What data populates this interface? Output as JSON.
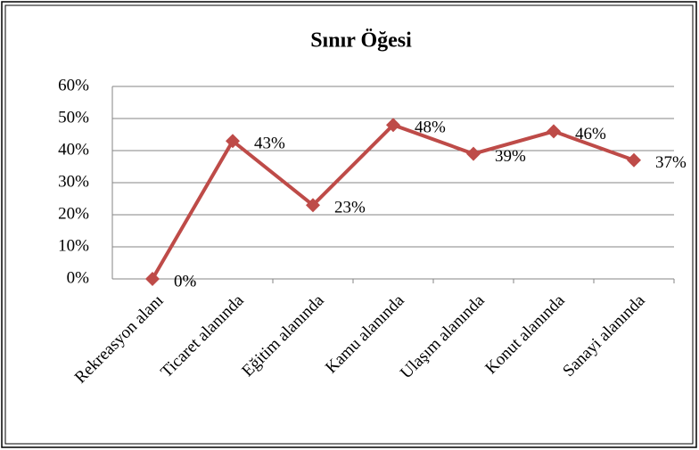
{
  "chart_data": {
    "type": "line",
    "title": "Sınır Öğesi",
    "categories": [
      "Rekreasyon alanı",
      "Ticaret alanında",
      "Eğitim alanında",
      "Kamu alanında",
      "Ulaşım alanında",
      "Konut alanında",
      "Sanayi alanında"
    ],
    "values": [
      0,
      43,
      23,
      48,
      39,
      46,
      37
    ],
    "value_labels": [
      "0%",
      "43%",
      "23%",
      "48%",
      "39%",
      "46%",
      "37%"
    ],
    "color": "#be4b48",
    "ylim": [
      0,
      60
    ],
    "yticks": [
      {
        "value": 0,
        "label": "0%"
      },
      {
        "value": 10,
        "label": "10%"
      },
      {
        "value": 20,
        "label": "20%"
      },
      {
        "value": 30,
        "label": "30%"
      },
      {
        "value": 40,
        "label": "40%"
      },
      {
        "value": 50,
        "label": "50%"
      },
      {
        "value": 60,
        "label": "60%"
      }
    ],
    "grid": true
  }
}
